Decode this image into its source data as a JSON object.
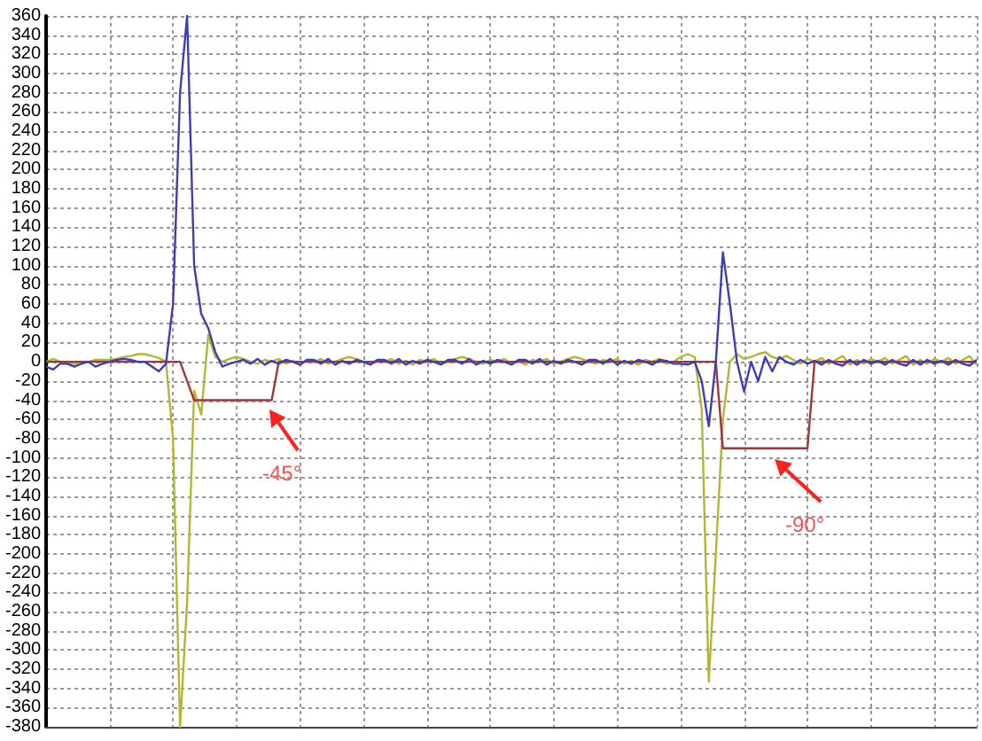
{
  "chart_data": {
    "type": "line",
    "ylim": [
      -380,
      360
    ],
    "categories": [
      null,
      null,
      null,
      null,
      null,
      null,
      null,
      null,
      null,
      null,
      null,
      null,
      null,
      null,
      null,
      null,
      null,
      null,
      null,
      null,
      null,
      null,
      null,
      null,
      null,
      null,
      null,
      null,
      null,
      null,
      null,
      null,
      null,
      null,
      null,
      null,
      null,
      null,
      null,
      null,
      null,
      null,
      null,
      null,
      null,
      null,
      null,
      null,
      null,
      null,
      null,
      null,
      null,
      null,
      null,
      null,
      null,
      null,
      null,
      null,
      null,
      null,
      null,
      null,
      null,
      null,
      null,
      null,
      null,
      null,
      null,
      null,
      null,
      null,
      null,
      null,
      null,
      null,
      null,
      null,
      null,
      null,
      null,
      null,
      null,
      null,
      null,
      null,
      null,
      null,
      null,
      null,
      null,
      null,
      null,
      null,
      null,
      null,
      null,
      null,
      null,
      null,
      null,
      null,
      null,
      null,
      null,
      null,
      null,
      null,
      null,
      null,
      null,
      null,
      null,
      null,
      null,
      null,
      null,
      null,
      null,
      null,
      null,
      null,
      null,
      null,
      null,
      null,
      null,
      null,
      null,
      null,
      null
    ],
    "yticks": [
      -380,
      -360,
      -340,
      -320,
      -300,
      -280,
      -260,
      -240,
      -220,
      -200,
      -180,
      -160,
      -140,
      -120,
      -100,
      -80,
      -60,
      -40,
      -20,
      0,
      20,
      40,
      60,
      80,
      100,
      120,
      140,
      160,
      180,
      200,
      220,
      240,
      260,
      280,
      300,
      320,
      340,
      360
    ],
    "grid": true,
    "marker": "none",
    "line_style": "solid",
    "series": [
      {
        "color": "#b5b534",
        "values": [
          0,
          3,
          0,
          -2,
          -2,
          0,
          0,
          2,
          2,
          2,
          3,
          5,
          6,
          8,
          8,
          6,
          4,
          0,
          -80,
          -380,
          -250,
          -30,
          -55,
          28,
          5,
          0,
          3,
          5,
          3,
          0,
          -2,
          2,
          0,
          3,
          -2,
          1,
          -3,
          2,
          0,
          3,
          -2,
          0,
          3,
          5,
          3,
          0,
          -2,
          2,
          0,
          3,
          -2,
          1,
          -3,
          2,
          0,
          3,
          -2,
          0,
          3,
          5,
          3,
          0,
          -2,
          2,
          0,
          3,
          -2,
          1,
          -3,
          2,
          0,
          3,
          -2,
          0,
          3,
          5,
          3,
          0,
          -2,
          2,
          0,
          3,
          -2,
          1,
          -3,
          2,
          0,
          3,
          -2,
          0,
          5,
          8,
          5,
          -50,
          -333,
          -200,
          -60,
          0,
          8,
          3,
          5,
          8,
          10,
          5,
          3,
          6,
          2,
          -2,
          3,
          0,
          4,
          -2,
          2,
          6,
          -3,
          2,
          -2,
          3,
          0,
          4,
          -2,
          2,
          6,
          -3,
          2,
          -2,
          3,
          0,
          4,
          -2,
          2,
          6,
          -3
        ]
      },
      {
        "color": "#a0383a",
        "values": [
          0,
          0,
          0,
          0,
          0,
          0,
          0,
          0,
          0,
          0,
          0,
          0,
          0,
          0,
          0,
          0,
          0,
          0,
          0,
          0,
          -20,
          -40,
          -40,
          -40,
          -40,
          -40,
          -40,
          -40,
          -40,
          -40,
          -40,
          -40,
          -40,
          0,
          0,
          0,
          0,
          0,
          0,
          0,
          0,
          0,
          0,
          0,
          0,
          0,
          0,
          0,
          0,
          0,
          0,
          0,
          0,
          0,
          0,
          0,
          0,
          0,
          0,
          0,
          0,
          0,
          0,
          0,
          0,
          0,
          0,
          0,
          0,
          0,
          0,
          0,
          0,
          0,
          0,
          0,
          0,
          0,
          0,
          0,
          0,
          0,
          0,
          0,
          0,
          0,
          0,
          0,
          0,
          0,
          0,
          0,
          0,
          0,
          0,
          0,
          -90,
          -90,
          -90,
          -90,
          -90,
          -90,
          -90,
          -90,
          -90,
          -90,
          -90,
          -90,
          -90,
          0,
          0,
          0,
          0,
          0,
          0,
          0,
          0,
          0,
          0,
          0,
          0,
          0,
          0,
          0,
          0,
          0,
          0,
          0,
          0,
          0,
          0,
          0,
          0
        ]
      },
      {
        "color": "#3d3db8",
        "values": [
          -5,
          -8,
          -2,
          -2,
          -5,
          -2,
          0,
          -5,
          -2,
          0,
          2,
          3,
          2,
          0,
          0,
          -5,
          -10,
          -2,
          60,
          280,
          360,
          100,
          50,
          35,
          10,
          -5,
          -2,
          0,
          2,
          -2,
          3,
          -3,
          1,
          -2,
          2,
          0,
          -3,
          2,
          2,
          -2,
          3,
          -3,
          1,
          -2,
          2,
          0,
          -3,
          2,
          2,
          -2,
          3,
          -3,
          1,
          -2,
          2,
          0,
          -3,
          2,
          2,
          -2,
          3,
          -3,
          1,
          -2,
          2,
          0,
          -3,
          2,
          2,
          -2,
          3,
          -3,
          1,
          -2,
          2,
          0,
          -3,
          2,
          2,
          -2,
          3,
          -3,
          1,
          -2,
          2,
          0,
          -3,
          2,
          1,
          -2,
          -2,
          -3,
          0,
          -20,
          -67,
          0,
          114,
          60,
          0,
          -31,
          0,
          -20,
          5,
          -10,
          5,
          0,
          -3,
          2,
          -2,
          1,
          -3,
          2,
          -2,
          -4,
          2,
          -3,
          2,
          -2,
          1,
          -3,
          2,
          -2,
          -4,
          2,
          -3,
          2,
          -2,
          1,
          -3,
          2,
          -2,
          -4,
          2
        ]
      }
    ],
    "annotations": [
      "-45°",
      "-90°"
    ]
  }
}
